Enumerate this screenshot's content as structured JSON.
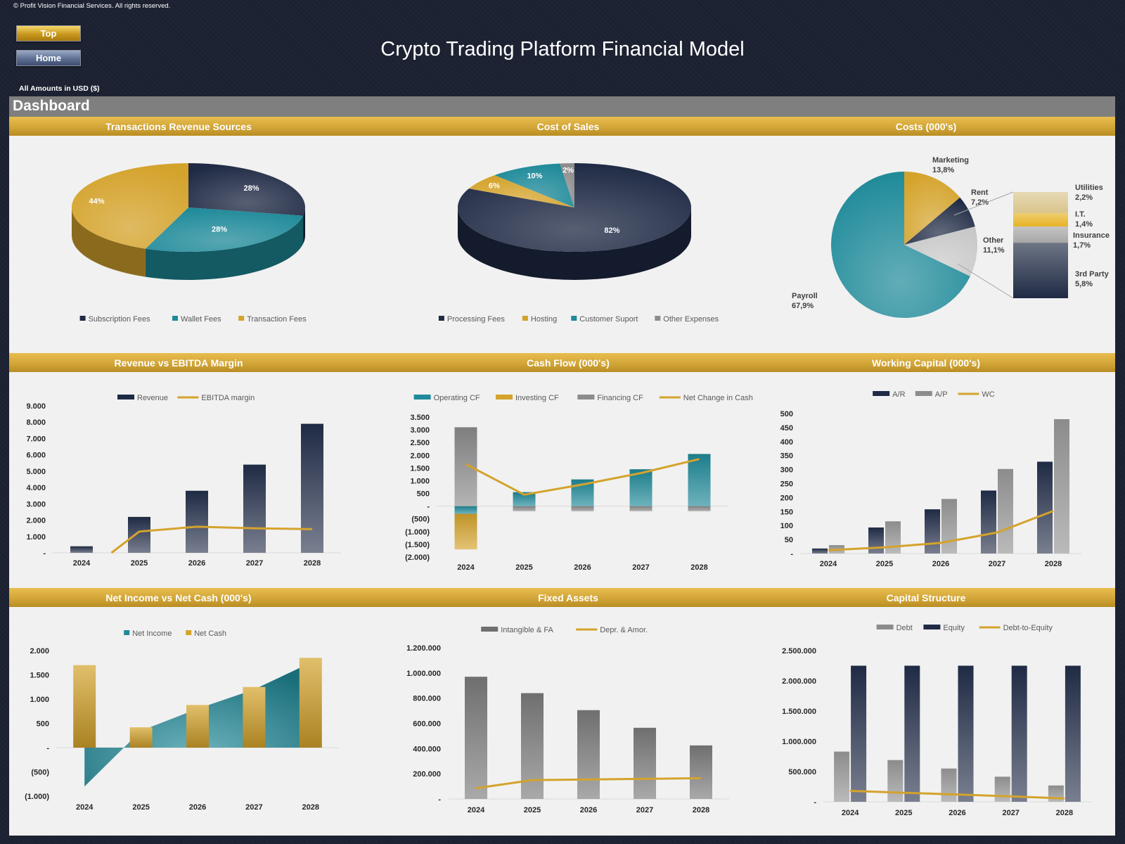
{
  "header": {
    "copyright": "© Profit Vision Financial Services. All rights reserved.",
    "top_button": "Top",
    "home_button": "Home",
    "title": "Crypto Trading Platform Financial Model",
    "amounts_label": "All Amounts in  USD ($)",
    "dashboard_title": "Dashboard"
  },
  "colors": {
    "navy": "#1f2a44",
    "teal": "#1f8a99",
    "gold": "#d4a32c",
    "gray": "#8c8c8c",
    "light_gray": "#c8c8c8",
    "band": "#cfa335"
  },
  "chart_data": [
    {
      "id": "revenue_sources",
      "type": "pie",
      "title": "Transactions Revenue Sources",
      "labels": [
        "Subscription Fees",
        "Wallet Fees",
        "Transaction Fees"
      ],
      "values": [
        28,
        28,
        44
      ],
      "data_labels": [
        "28%",
        "28%",
        "44%"
      ],
      "colors": [
        "#1f2a44",
        "#1f8a99",
        "#d4a32c"
      ]
    },
    {
      "id": "cost_of_sales",
      "type": "pie",
      "title": "Cost of Sales",
      "labels": [
        "Processing Fees",
        "Hosting",
        "Customer Suport",
        "Other Expenses"
      ],
      "values": [
        82,
        6,
        10,
        2
      ],
      "data_labels": [
        "82%",
        "6%",
        "10%",
        "2%"
      ],
      "colors": [
        "#1f2a44",
        "#d4a32c",
        "#1f8a99",
        "#8c8c8c"
      ]
    },
    {
      "id": "costs",
      "type": "pie",
      "title": "Costs (000's)",
      "labels": [
        "Payroll",
        "Marketing",
        "Rent",
        "Other"
      ],
      "values": [
        67.9,
        13.8,
        7.2,
        11.1
      ],
      "data_labels": [
        "67,9%",
        "13,8%",
        "7,2%",
        "11,1%"
      ],
      "colors": [
        "#1f8a99",
        "#d4a32c",
        "#1f2a44",
        "#c8c8c8"
      ],
      "breakdown": {
        "labels": [
          "3rd Party",
          "Insurance",
          "I.T.",
          "Utilities"
        ],
        "values": [
          5.8,
          1.7,
          1.4,
          2.2
        ],
        "data_labels": [
          "5,8%",
          "1,7%",
          "1,4%",
          "2,2%"
        ],
        "colors": [
          "#1f2a44",
          "#a6a6a6",
          "#e7b325",
          "#d9c48c"
        ]
      }
    },
    {
      "id": "revenue_ebitda",
      "type": "bar",
      "title": "Revenue vs EBITDA Margin",
      "categories": [
        "2024",
        "2025",
        "2026",
        "2027",
        "2028"
      ],
      "series": [
        {
          "name": "Revenue",
          "kind": "bar",
          "values": [
            400,
            2200,
            3800,
            5400,
            7900
          ],
          "color": "#1f2a44"
        },
        {
          "name": "EBITDA margin",
          "kind": "line",
          "values": [
            -1400,
            1300,
            1600,
            1500,
            1450
          ],
          "color": "#d4a32c"
        }
      ],
      "ylim": [
        0,
        9000
      ],
      "yticks": [
        0,
        1000,
        2000,
        3000,
        4000,
        5000,
        6000,
        7000,
        8000,
        9000
      ],
      "ytick_labels": [
        "-",
        "1.000",
        "2.000",
        "3.000",
        "4.000",
        "5.000",
        "6.000",
        "7.000",
        "8.000",
        "9.000"
      ]
    },
    {
      "id": "cash_flow",
      "type": "bar",
      "title": "Cash Flow (000's)",
      "categories": [
        "2024",
        "2025",
        "2026",
        "2027",
        "2028"
      ],
      "series": [
        {
          "name": "Operating CF",
          "kind": "bar",
          "values": [
            -300,
            550,
            1050,
            1450,
            2050
          ],
          "color": "#1f8a99"
        },
        {
          "name": "Investing CF",
          "kind": "bar",
          "values": [
            -1400,
            0,
            0,
            0,
            0
          ],
          "color": "#d4a32c"
        },
        {
          "name": "Financing CF",
          "kind": "bar",
          "values": [
            3100,
            -200,
            -200,
            -200,
            -200
          ],
          "color": "#8c8c8c"
        },
        {
          "name": "Net Change in Cash",
          "kind": "line",
          "values": [
            1650,
            450,
            850,
            1300,
            1850
          ],
          "color": "#d4a32c"
        }
      ],
      "ylim": [
        -2000,
        3500
      ],
      "yticks": [
        -2000,
        -1500,
        -1000,
        -500,
        0,
        500,
        1000,
        1500,
        2000,
        2500,
        3000,
        3500
      ],
      "ytick_labels": [
        "(2.000)",
        "(1.500)",
        "(1.000)",
        "(500)",
        "-",
        "500",
        "1.000",
        "1.500",
        "2.000",
        "2.500",
        "3.000",
        "3.500"
      ]
    },
    {
      "id": "working_capital",
      "type": "bar",
      "title": "Working Capital (000's)",
      "categories": [
        "2024",
        "2025",
        "2026",
        "2027",
        "2028"
      ],
      "series": [
        {
          "name": "A/R",
          "kind": "bar",
          "values": [
            18,
            93,
            158,
            225,
            328
          ],
          "color": "#1f2a44"
        },
        {
          "name": "A/P",
          "kind": "bar",
          "values": [
            30,
            115,
            195,
            302,
            480
          ],
          "color": "#8c8c8c"
        },
        {
          "name": "WC",
          "kind": "line",
          "values": [
            12,
            22,
            38,
            75,
            152
          ],
          "color": "#d4a32c"
        }
      ],
      "ylim": [
        0,
        500
      ],
      "yticks": [
        0,
        50,
        100,
        150,
        200,
        250,
        300,
        350,
        400,
        450,
        500
      ],
      "ytick_labels": [
        "-",
        "50",
        "100",
        "150",
        "200",
        "250",
        "300",
        "350",
        "400",
        "450",
        "500"
      ]
    },
    {
      "id": "net_income_cash",
      "type": "bar",
      "title": "Net Income vs Net Cash (000's)",
      "categories": [
        "2024",
        "2025",
        "2026",
        "2027",
        "2028"
      ],
      "series": [
        {
          "name": "Net Income",
          "kind": "area",
          "values": [
            -800,
            350,
            800,
            1200,
            1750
          ],
          "color": "#1f8a99"
        },
        {
          "name": "Net Cash",
          "kind": "bar",
          "values": [
            1700,
            420,
            880,
            1250,
            1850
          ],
          "color": "#d4a32c"
        }
      ],
      "ylim": [
        -1000,
        2000
      ],
      "yticks": [
        -1000,
        -500,
        0,
        500,
        1000,
        1500,
        2000
      ],
      "ytick_labels": [
        "(1.000)",
        "(500)",
        "-",
        "500",
        "1.000",
        "1.500",
        "2.000"
      ]
    },
    {
      "id": "fixed_assets",
      "type": "bar",
      "title": "Fixed Assets",
      "categories": [
        "2024",
        "2025",
        "2026",
        "2027",
        "2028"
      ],
      "series": [
        {
          "name": "Intangible & FA",
          "kind": "bar",
          "values": [
            970000,
            840000,
            705000,
            565000,
            425000
          ],
          "color": "#6f6f6f"
        },
        {
          "name": "Depr. & Amor.",
          "kind": "line",
          "values": [
            85000,
            150000,
            155000,
            160000,
            165000
          ],
          "color": "#d4a32c"
        }
      ],
      "ylim": [
        0,
        1200000
      ],
      "yticks": [
        0,
        200000,
        400000,
        600000,
        800000,
        1000000,
        1200000
      ],
      "ytick_labels": [
        "-",
        "200.000",
        "400.000",
        "600.000",
        "800.000",
        "1.000.000",
        "1.200.000"
      ]
    },
    {
      "id": "capital_structure",
      "type": "bar",
      "title": "Capital Structure",
      "categories": [
        "2024",
        "2025",
        "2026",
        "2027",
        "2028"
      ],
      "series": [
        {
          "name": "Debt",
          "kind": "bar",
          "values": [
            830000,
            690000,
            550000,
            415000,
            270000
          ],
          "color": "#8c8c8c"
        },
        {
          "name": "Equity",
          "kind": "bar",
          "values": [
            2250000,
            2250000,
            2250000,
            2250000,
            2250000
          ],
          "color": "#1f2a44"
        },
        {
          "name": "Debt-to-Equity",
          "kind": "line",
          "values": [
            180000,
            150000,
            120000,
            90000,
            55000
          ],
          "color": "#d4a32c"
        }
      ],
      "ylim": [
        0,
        2500000
      ],
      "yticks": [
        0,
        500000,
        1000000,
        1500000,
        2000000,
        2500000
      ],
      "ytick_labels": [
        "-",
        "500.000",
        "1.000.000",
        "1.500.000",
        "2.000.000",
        "2.500.000"
      ]
    }
  ]
}
